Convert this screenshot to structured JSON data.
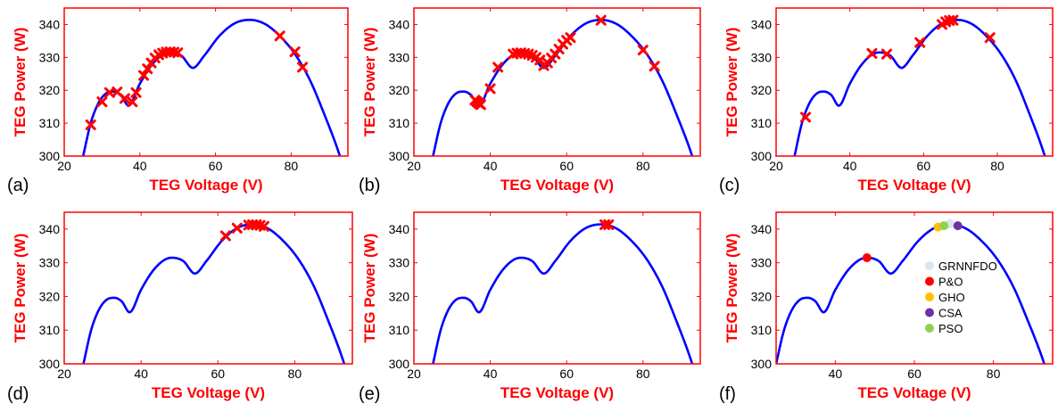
{
  "figure": {
    "colors": {
      "axes": "#ff0000",
      "curve": "#0000ff",
      "marker": "#ff0000",
      "tick_text": "#000000"
    },
    "shared_axes": {
      "xlabel": "TEG Voltage (V)",
      "ylabel": "TEG Power (W)"
    }
  },
  "chart_data": [
    {
      "panel": "(a)",
      "type": "line",
      "xlabel": "TEG Voltage (V)",
      "ylabel": "TEG Power (W)",
      "xlim": [
        20,
        95
      ],
      "ylim": [
        300,
        345
      ],
      "xticks": [
        20,
        40,
        60,
        80
      ],
      "yticks": [
        300,
        310,
        320,
        330,
        340
      ],
      "curve": {
        "x": [
          25,
          27,
          29,
          31,
          33,
          35,
          37,
          40,
          43,
          46,
          48,
          51,
          54,
          57,
          61,
          65,
          69,
          73,
          77,
          81,
          85,
          89,
          92,
          94
        ],
        "y": [
          300,
          310,
          316,
          319,
          319.6,
          318.5,
          315.3,
          322,
          327.5,
          330.8,
          331.5,
          330.5,
          326.8,
          330.5,
          336.5,
          340.3,
          341.4,
          340.2,
          336.5,
          331,
          323,
          312,
          303,
          296
        ]
      },
      "markers": {
        "symbol": "x",
        "x": [
          27,
          30,
          32,
          34,
          36,
          38,
          39,
          41,
          42,
          43,
          44,
          45,
          46,
          47,
          48,
          49,
          50,
          77,
          81,
          83
        ],
        "y": [
          309.5,
          316.5,
          319.3,
          319.5,
          317.5,
          316.5,
          319.3,
          324.5,
          326.5,
          328.3,
          329.8,
          330.8,
          331.3,
          331.6,
          331.7,
          331.6,
          331.4,
          336.5,
          331.7,
          327
        ]
      }
    },
    {
      "panel": "(b)",
      "type": "line",
      "xlabel": "TEG Voltage (V)",
      "ylabel": "TEG Power (W)",
      "xlim": [
        20,
        95
      ],
      "ylim": [
        300,
        345
      ],
      "xticks": [
        20,
        40,
        60,
        80
      ],
      "yticks": [
        300,
        310,
        320,
        330,
        340
      ],
      "curve": {
        "x": [
          25,
          27,
          29,
          31,
          33,
          35,
          37,
          40,
          43,
          46,
          48,
          51,
          54,
          57,
          61,
          65,
          69,
          73,
          77,
          81,
          85,
          89,
          92,
          94
        ],
        "y": [
          300,
          310,
          316,
          319,
          319.6,
          318.5,
          315.3,
          322,
          327.5,
          330.8,
          331.5,
          330.5,
          326.8,
          330.5,
          336.5,
          340.3,
          341.4,
          340.2,
          336.5,
          331,
          323,
          312,
          303,
          296
        ]
      },
      "markers": {
        "symbol": "x",
        "x": [
          36,
          36.5,
          37,
          37.5,
          40,
          42,
          46,
          47,
          48,
          49,
          50,
          51,
          52,
          53,
          54,
          55,
          56,
          57,
          58,
          59,
          60,
          61,
          69,
          80,
          83
        ],
        "y": [
          317,
          316.5,
          316,
          315.6,
          320.5,
          327,
          331,
          331.3,
          331.4,
          331.2,
          331,
          330.6,
          330,
          329.2,
          327.5,
          328.3,
          329.8,
          331,
          332.5,
          334,
          335.2,
          336,
          341.3,
          332.2,
          327.3
        ]
      }
    },
    {
      "panel": "(c)",
      "type": "line",
      "xlabel": "TEG Voltage (V)",
      "ylabel": "TEG Power (W)",
      "xlim": [
        20,
        95
      ],
      "ylim": [
        300,
        345
      ],
      "xticks": [
        20,
        40,
        60,
        80
      ],
      "yticks": [
        300,
        310,
        320,
        330,
        340
      ],
      "curve": {
        "x": [
          25,
          27,
          29,
          31,
          33,
          35,
          37,
          40,
          43,
          46,
          48,
          51,
          54,
          57,
          61,
          65,
          69,
          73,
          77,
          81,
          85,
          89,
          92,
          94
        ],
        "y": [
          300,
          310,
          316,
          319,
          319.6,
          318.5,
          315.3,
          322,
          327.5,
          330.8,
          331.5,
          330.5,
          326.8,
          330.5,
          336.5,
          340.3,
          341.4,
          340.2,
          336.5,
          331,
          323,
          312,
          303,
          296
        ]
      },
      "markers": {
        "symbol": "x",
        "x": [
          28,
          46,
          50,
          59,
          65,
          66,
          67,
          68,
          78
        ],
        "y": [
          311.8,
          331.2,
          331,
          334.5,
          340,
          340.8,
          341.2,
          341.3,
          336
        ]
      }
    },
    {
      "panel": "(d)",
      "type": "line",
      "xlabel": "TEG Voltage (V)",
      "ylabel": "TEG Power (W)",
      "xlim": [
        20,
        95
      ],
      "ylim": [
        300,
        345
      ],
      "xticks": [
        20,
        40,
        60,
        80
      ],
      "yticks": [
        300,
        310,
        320,
        330,
        340
      ],
      "curve": {
        "x": [
          25,
          27,
          29,
          31,
          33,
          35,
          37,
          40,
          43,
          46,
          48,
          51,
          54,
          57,
          61,
          65,
          69,
          73,
          77,
          81,
          85,
          89,
          92,
          94
        ],
        "y": [
          300,
          310,
          316,
          319,
          319.6,
          318.5,
          315.3,
          322,
          327.5,
          330.8,
          331.5,
          330.5,
          326.8,
          330.5,
          336.5,
          340.3,
          341.4,
          340.2,
          336.5,
          331,
          323,
          312,
          303,
          296
        ]
      },
      "markers": {
        "symbol": "x",
        "x": [
          62,
          65,
          68,
          69,
          70,
          71,
          72
        ],
        "y": [
          338,
          340.3,
          341.2,
          341.3,
          341.3,
          341.1,
          340.8
        ]
      }
    },
    {
      "panel": "(e)",
      "type": "line",
      "xlabel": "TEG Voltage (V)",
      "ylabel": "TEG Power (W)",
      "xlim": [
        20,
        95
      ],
      "ylim": [
        300,
        345
      ],
      "xticks": [
        20,
        40,
        60,
        80
      ],
      "yticks": [
        300,
        310,
        320,
        330,
        340
      ],
      "curve": {
        "x": [
          25,
          27,
          29,
          31,
          33,
          35,
          37,
          40,
          43,
          46,
          48,
          51,
          54,
          57,
          61,
          65,
          69,
          73,
          77,
          81,
          85,
          89,
          92,
          94
        ],
        "y": [
          300,
          310,
          316,
          319,
          319.6,
          318.5,
          315.3,
          322,
          327.5,
          330.8,
          331.5,
          330.5,
          326.8,
          330.5,
          336.5,
          340.3,
          341.4,
          340.2,
          336.5,
          331,
          323,
          312,
          303,
          296
        ]
      },
      "markers": {
        "symbol": "x",
        "x": [
          70,
          71
        ],
        "y": [
          341.3,
          341.3
        ]
      }
    },
    {
      "panel": "(f)",
      "type": "line",
      "xlabel": "TEG Voltage (V)",
      "ylabel": "TEG Power (W)",
      "xlim": [
        25,
        95
      ],
      "ylim": [
        300,
        345
      ],
      "xticks": [
        40,
        60,
        80
      ],
      "yticks": [
        300,
        310,
        320,
        330,
        340
      ],
      "curve": {
        "x": [
          25,
          27,
          29,
          31,
          33,
          35,
          37,
          40,
          43,
          46,
          48,
          51,
          54,
          57,
          61,
          65,
          69,
          73,
          77,
          81,
          85,
          89,
          92,
          94
        ],
        "y": [
          300,
          310,
          316,
          319,
          319.6,
          318.5,
          315.3,
          322,
          327.5,
          330.8,
          331.5,
          330.5,
          326.8,
          330.5,
          336.5,
          340.3,
          341.4,
          340.2,
          336.5,
          331,
          323,
          312,
          303,
          296
        ]
      },
      "legend": {
        "position": "inside-right"
      },
      "points": [
        {
          "name": "GRNNFDO",
          "color": "#d6e6f5",
          "x": 69,
          "y": 341.6
        },
        {
          "name": "P&O",
          "color": "#ff0000",
          "x": 48,
          "y": 331.5
        },
        {
          "name": "GHO",
          "color": "#ffc000",
          "x": 66,
          "y": 340.6
        },
        {
          "name": "CSA",
          "color": "#7030a0",
          "x": 71,
          "y": 341
        },
        {
          "name": "PSO",
          "color": "#92d050",
          "x": 67.5,
          "y": 341
        }
      ]
    }
  ]
}
